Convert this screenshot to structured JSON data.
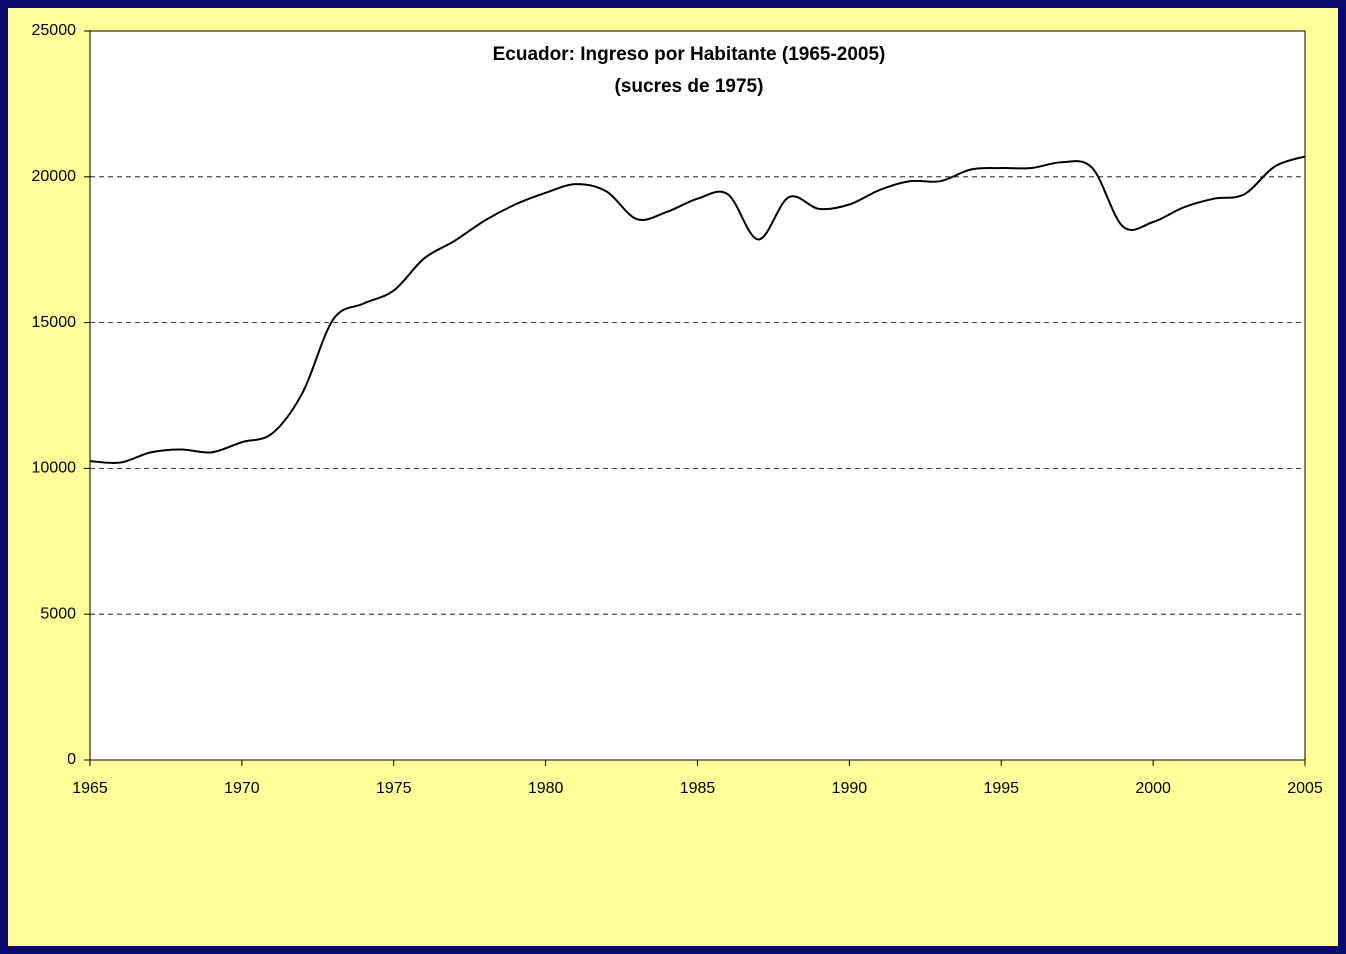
{
  "chart_data": {
    "type": "line",
    "title": "Ecuador: Ingreso por Habitante (1965-2005)",
    "subtitle": "(sucres de 1975)",
    "x": [
      1965,
      1966,
      1967,
      1968,
      1969,
      1970,
      1971,
      1972,
      1973,
      1974,
      1975,
      1976,
      1977,
      1978,
      1979,
      1980,
      1981,
      1982,
      1983,
      1984,
      1985,
      1986,
      1987,
      1988,
      1989,
      1990,
      1991,
      1992,
      1993,
      1994,
      1995,
      1996,
      1997,
      1998,
      1999,
      2000,
      2001,
      2002,
      2003,
      2004,
      2005
    ],
    "series": [
      {
        "color": "#000000",
        "values": [
          10250,
          10200,
          10550,
          10650,
          10550,
          10900,
          11200,
          12600,
          15100,
          15650,
          16100,
          17200,
          17800,
          18500,
          19050,
          19450,
          19750,
          19500,
          18550,
          18800,
          19250,
          19400,
          17850,
          19300,
          18900,
          19050,
          19550,
          19850,
          19850,
          20250,
          20300,
          20300,
          20500,
          20300,
          18300,
          18450,
          18950,
          19250,
          19400,
          20350,
          20700
        ]
      }
    ],
    "xlim": [
      1965,
      2005
    ],
    "xticks": [
      1965,
      1970,
      1975,
      1980,
      1985,
      1990,
      1995,
      2000,
      2005
    ],
    "ylim": [
      0,
      25000
    ],
    "yticks": [
      0,
      5000,
      10000,
      15000,
      20000,
      25000
    ],
    "grid": true
  }
}
